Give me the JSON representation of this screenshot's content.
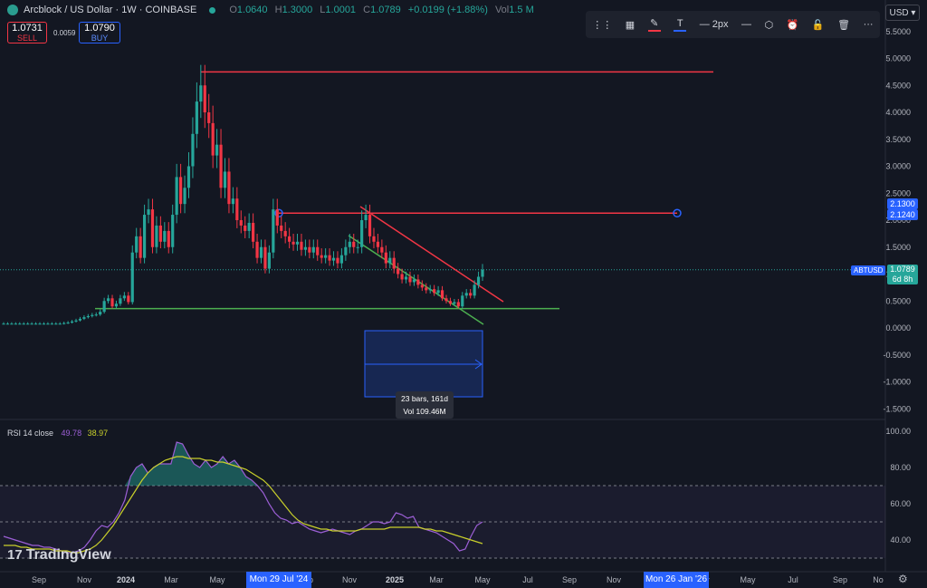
{
  "header": {
    "title": "Arcblock / US Dollar · 1W · COINBASE",
    "ohlc": {
      "o": "1.0640",
      "h": "1.3000",
      "l": "1.0001",
      "c": "1.0789",
      "chg": "+0.0199 (+1.88%)",
      "vol": "1.5 M"
    }
  },
  "trade": {
    "sell_price": "1.0731",
    "sell_label": "SELL",
    "spread": "0.0059",
    "buy_price": "1.0790",
    "buy_label": "BUY"
  },
  "toolbar": {
    "width_label": "2px"
  },
  "currency": "USD",
  "price_tags": {
    "upper": "2.1300",
    "lower": "2.1240",
    "symbol": "ABTUSD",
    "last": "1.0789",
    "countdown": "6d 8h"
  },
  "measure": {
    "bars": "23 bars, 161d",
    "vol": "Vol 109.46M"
  },
  "rsi": {
    "name": "RSI 14 close",
    "value1": "49.78",
    "value2": "38.97"
  },
  "brand": "TradingView",
  "colors": {
    "up": "#26a69a",
    "down": "#f23645",
    "rsi": "#9c5fd6",
    "rsi_ma": "#c9d02b",
    "hline": "#f23645",
    "support": "#4caf50",
    "accent": "#2962ff"
  },
  "x_axis": {
    "labels": [
      "Sep",
      "Nov",
      "2024",
      "Mar",
      "May",
      "Jul",
      "Sep",
      "Nov",
      "2025",
      "Mar",
      "May",
      "Jul",
      "Sep",
      "Nov",
      "Jan",
      "Mar",
      "May",
      "Jul",
      "Sep",
      "No"
    ],
    "highlight_left": "Mon 29 Jul '24",
    "highlight_right": "Mon 26 Jan '26"
  },
  "chart_data": [
    {
      "type": "candlestick",
      "title": "Arcblock / US Dollar · 1W · COINBASE",
      "y_ticks": [
        "5.5000",
        "5.0000",
        "4.5000",
        "4.0000",
        "3.5000",
        "3.0000",
        "2.5000",
        "2.0000",
        "1.5000",
        "1.0000",
        "0.5000",
        "0.0000",
        "-0.5000",
        "-1.0000",
        "-1.5000"
      ],
      "ylim": [
        -1.5,
        5.5
      ],
      "close": [
        0.08,
        0.08,
        0.08,
        0.08,
        0.08,
        0.08,
        0.08,
        0.08,
        0.08,
        0.08,
        0.08,
        0.08,
        0.08,
        0.08,
        0.08,
        0.09,
        0.1,
        0.12,
        0.14,
        0.17,
        0.2,
        0.22,
        0.24,
        0.25,
        0.3,
        0.5,
        0.55,
        0.4,
        0.45,
        0.55,
        0.6,
        0.48,
        1.4,
        1.7,
        1.3,
        2.1,
        2.2,
        1.5,
        1.9,
        1.6,
        1.8,
        1.5,
        2.1,
        2.8,
        2.3,
        2.6,
        3.0,
        3.6,
        4.2,
        4.5,
        4.0,
        3.8,
        3.2,
        3.4,
        2.6,
        2.9,
        2.3,
        2.4,
        2.0,
        1.9,
        1.8,
        1.95,
        1.6,
        1.3,
        1.5,
        1.1,
        1.4,
        2.2,
        1.9,
        1.8,
        1.7,
        1.6,
        1.55,
        1.6,
        1.45,
        1.5,
        1.4,
        1.5,
        1.35,
        1.3,
        1.35,
        1.25,
        1.3,
        1.2,
        1.35,
        1.5,
        1.6,
        1.5,
        1.5,
        2.0,
        2.1,
        1.7,
        1.6,
        1.5,
        1.4,
        1.2,
        1.3,
        1.1,
        1.0,
        0.9,
        0.95,
        0.85,
        0.9,
        0.8,
        0.75,
        0.7,
        0.72,
        0.65,
        0.7,
        0.55,
        0.5,
        0.45,
        0.48,
        0.4,
        0.6,
        0.65,
        0.6,
        0.8,
        0.95,
        1.08
      ],
      "horizontal_lines": [
        {
          "value": 4.75,
          "color": "red"
        },
        {
          "value": 2.13,
          "color": "red"
        },
        {
          "value": 0.36,
          "color": "green"
        }
      ],
      "trendlines": [
        {
          "from": [
            2.3,
            "Nov 2024"
          ],
          "to": [
            0.5,
            "May 2025"
          ],
          "color": "red"
        },
        {
          "from": [
            1.6,
            "Oct 2024"
          ],
          "to": [
            0.05,
            "May 2025"
          ],
          "color": "green"
        }
      ],
      "last_price": 1.0789
    },
    {
      "type": "line",
      "name": "RSI 14 close",
      "y_ticks": [
        "100.00",
        "80.00",
        "60.00",
        "40.00"
      ],
      "ylim": [
        28,
        102
      ],
      "bands": [
        70,
        50,
        30
      ],
      "series": [
        {
          "name": "RSI",
          "values": [
            42,
            41,
            40,
            39,
            38,
            37,
            37,
            36,
            36,
            35,
            34,
            33,
            33,
            34,
            36,
            40,
            45,
            48,
            47,
            50,
            55,
            62,
            75,
            80,
            82,
            77,
            80,
            82,
            82,
            82,
            94,
            93,
            87,
            82,
            80,
            84,
            80,
            82,
            86,
            82,
            84,
            80,
            75,
            73,
            70,
            66,
            60,
            55,
            52,
            51,
            49,
            50,
            48,
            46,
            45,
            44,
            45,
            46,
            45,
            44,
            43,
            45,
            46,
            48,
            50,
            50,
            49,
            50,
            55,
            54,
            52,
            53,
            47,
            46,
            45,
            44,
            42,
            40,
            38,
            34,
            35,
            42,
            48,
            50
          ]
        },
        {
          "name": "RSI-MA",
          "values": [
            37,
            37,
            37,
            36,
            36,
            35,
            35,
            35,
            35,
            34,
            34,
            34,
            33,
            33,
            34,
            35,
            37,
            40,
            44,
            48,
            53,
            58,
            63,
            68,
            73,
            77,
            80,
            82,
            84,
            85,
            86,
            86,
            85,
            85,
            85,
            84,
            84,
            83,
            83,
            82,
            81,
            80,
            79,
            77,
            75,
            73,
            70,
            66,
            62,
            58,
            54,
            51,
            49,
            48,
            47,
            46,
            46,
            45,
            45,
            45,
            45,
            45,
            46,
            46,
            46,
            46,
            46,
            47,
            47,
            47,
            47,
            47,
            47,
            46,
            46,
            45,
            45,
            44,
            43,
            42,
            41,
            40,
            39,
            38
          ]
        }
      ]
    }
  ]
}
